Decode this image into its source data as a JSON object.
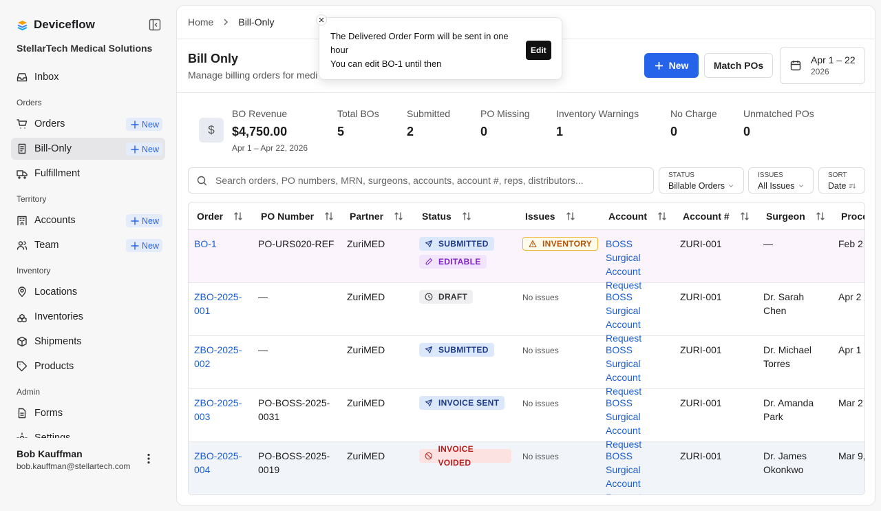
{
  "sidebar": {
    "brand": "Deviceflow",
    "org": "StellarTech Medical Solutions",
    "inbox": "Inbox",
    "sections": [
      {
        "heading": "Orders",
        "items": [
          {
            "label": "Orders",
            "badge": "New"
          },
          {
            "label": "Bill-Only",
            "badge": "New",
            "active": true
          },
          {
            "label": "Fulfillment"
          }
        ]
      },
      {
        "heading": "Territory",
        "items": [
          {
            "label": "Accounts",
            "badge": "New"
          },
          {
            "label": "Team",
            "badge": "New"
          }
        ]
      },
      {
        "heading": "Inventory",
        "items": [
          {
            "label": "Locations"
          },
          {
            "label": "Inventories"
          },
          {
            "label": "Shipments"
          },
          {
            "label": "Products"
          }
        ]
      },
      {
        "heading": "Admin",
        "items": [
          {
            "label": "Forms"
          },
          {
            "label": "Settings"
          }
        ]
      }
    ],
    "user": {
      "name": "Bob Kauffman",
      "email": "bob.kauffman@stellartech.com"
    }
  },
  "breadcrumb": [
    "Home",
    "Bill-Only"
  ],
  "toast": {
    "message": "The Delivered Order Form will be sent in one hour",
    "detail": "You can edit BO-1 until then",
    "action": "Edit"
  },
  "header": {
    "title": "Bill Only",
    "subtitle": "Manage billing orders for medi",
    "new_button": "New",
    "match_button": "Match POs",
    "date_range": "Apr 1 – 22",
    "date_year": "2026"
  },
  "stats": [
    {
      "label": "BO Revenue",
      "value": "$4,750.00",
      "note": "Apr 1 – Apr 22, 2026"
    },
    {
      "label": "Total BOs",
      "value": 5
    },
    {
      "label": "Submitted",
      "value": 2
    },
    {
      "label": "PO Missing",
      "value": 0
    },
    {
      "label": "Inventory Warnings",
      "value": 1
    },
    {
      "label": "No Charge",
      "value": 0
    },
    {
      "label": "Unmatched POs",
      "value": 0
    }
  ],
  "search": {
    "placeholder": "Search orders, PO numbers, MRN, surgeons, accounts, account #, reps, distributors..."
  },
  "filters": [
    {
      "label": "STATUS",
      "value": "Billable Orders"
    },
    {
      "label": "ISSUES",
      "value": "All Issues"
    },
    {
      "label": "SORT",
      "value": "Date"
    }
  ],
  "table": {
    "columns": [
      "Order",
      "PO Number",
      "Partner",
      "Status",
      "Issues",
      "Account",
      "Account #",
      "Surgeon",
      "Proce"
    ],
    "rows": [
      {
        "order": "BO-1",
        "po": "PO-URS020-REF",
        "partner": "ZuriMED",
        "status": [
          "SUBMITTED",
          "EDITABLE"
        ],
        "issues": "INVENTORY",
        "account": "BOSS Surgical Account Request",
        "account_no": "ZURI-001",
        "surgeon": "—",
        "date": "Feb 2"
      },
      {
        "order": "ZBO-2025-001",
        "po": "—",
        "partner": "ZuriMED",
        "status": [
          "DRAFT"
        ],
        "issues": "No issues",
        "account": "BOSS Surgical Account Request",
        "account_no": "ZURI-001",
        "surgeon": "Dr. Sarah Chen",
        "date": "Apr 2"
      },
      {
        "order": "ZBO-2025-002",
        "po": "—",
        "partner": "ZuriMED",
        "status": [
          "SUBMITTED"
        ],
        "issues": "No issues",
        "account": "BOSS Surgical Account Request",
        "account_no": "ZURI-001",
        "surgeon": "Dr. Michael Torres",
        "date": "Apr 1"
      },
      {
        "order": "ZBO-2025-003",
        "po": "PO-BOSS-2025-0031",
        "partner": "ZuriMED",
        "status": [
          "INVOICE SENT"
        ],
        "issues": "No issues",
        "account": "BOSS Surgical Account Request",
        "account_no": "ZURI-001",
        "surgeon": "Dr. Amanda Park",
        "date": "Mar 2"
      },
      {
        "order": "ZBO-2025-004",
        "po": "PO-BOSS-2025-0019",
        "partner": "ZuriMED",
        "status": [
          "INVOICE VOIDED"
        ],
        "issues": "No issues",
        "account": "BOSS Surgical Account Request",
        "account_no": "ZURI-001",
        "surgeon": "Dr. James Okonkwo",
        "date": "Mar 9,"
      }
    ]
  }
}
